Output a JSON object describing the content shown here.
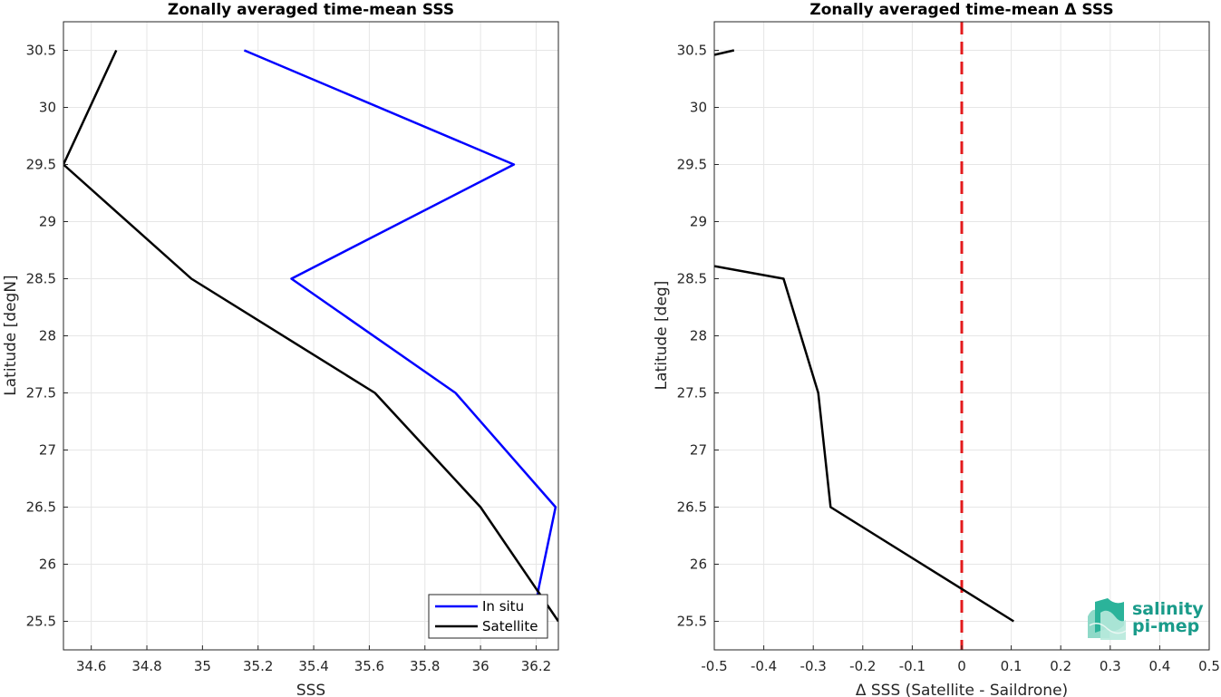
{
  "chart_data": [
    {
      "type": "line",
      "title": "Zonally averaged time-mean SSS",
      "xlabel": "SSS",
      "ylabel": "Latitude [degN]",
      "xlim": [
        34.5,
        36.28
      ],
      "ylim": [
        25.25,
        30.75
      ],
      "xticks": [
        "34.6",
        "34.8",
        "35",
        "35.2",
        "35.4",
        "35.6",
        "35.8",
        "36",
        "36.2"
      ],
      "yticks": [
        "25.5",
        "26",
        "26.5",
        "27",
        "27.5",
        "28",
        "28.5",
        "29",
        "29.5",
        "30",
        "30.5"
      ],
      "grid": true,
      "legend": "bottom-right",
      "series": [
        {
          "name": "In situ",
          "color": "#0000ff",
          "points": [
            [
              35.15,
              30.5
            ],
            [
              36.12,
              29.5
            ],
            [
              35.32,
              28.5
            ],
            [
              35.91,
              27.5
            ],
            [
              36.27,
              26.5
            ],
            [
              36.21,
              25.8
            ],
            [
              36.19,
              25.5
            ]
          ]
        },
        {
          "name": "Satellite",
          "color": "#000000",
          "points": [
            [
              34.69,
              30.5
            ],
            [
              34.5,
              29.5
            ],
            [
              34.96,
              28.5
            ],
            [
              35.62,
              27.5
            ],
            [
              36.0,
              26.5
            ],
            [
              36.28,
              25.5
            ]
          ]
        }
      ]
    },
    {
      "type": "line",
      "title": "Zonally averaged time-mean Δ SSS",
      "xlabel": "Δ SSS (Satellite - Saildrone)",
      "ylabel": "Latitude [deg]",
      "xlim": [
        -0.5,
        0.5
      ],
      "ylim": [
        25.25,
        30.75
      ],
      "xticks": [
        "-0.5",
        "-0.4",
        "-0.3",
        "-0.2",
        "-0.1",
        "0",
        "0.1",
        "0.2",
        "0.3",
        "0.4",
        "0.5"
      ],
      "yticks": [
        "25.5",
        "26",
        "26.5",
        "27",
        "27.5",
        "28",
        "28.5",
        "29",
        "29.5",
        "30",
        "30.5"
      ],
      "grid": true,
      "reference_line": {
        "x": 0,
        "color": "#e31a1c",
        "style": "dashed"
      },
      "series": [
        {
          "color": "#000000",
          "segments": [
            [
              [
                -0.5,
                30.46
              ],
              [
                -0.46,
                30.5
              ]
            ],
            [
              [
                -0.5,
                28.61
              ],
              [
                -0.36,
                28.5
              ],
              [
                -0.29,
                27.5
              ],
              [
                -0.265,
                26.5
              ],
              [
                0.105,
                25.5
              ]
            ]
          ]
        }
      ]
    }
  ],
  "logo": {
    "line1": "salinity",
    "line2": "pi-mep",
    "color": "#1a9b8a"
  }
}
